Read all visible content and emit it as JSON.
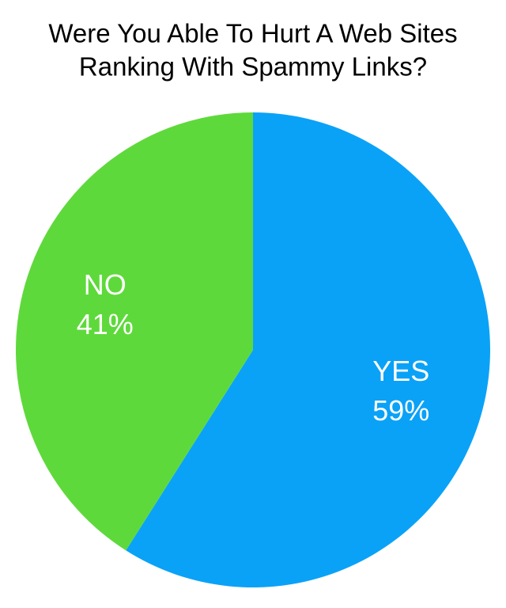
{
  "chart_data": {
    "type": "pie",
    "title": [
      "Were You Able To Hurt A Web Sites",
      "Ranking With Spammy Links?"
    ],
    "categories": [
      "YES",
      "NO"
    ],
    "values": [
      59,
      41
    ],
    "value_labels": [
      "59%",
      "41%"
    ],
    "colors": [
      "#0aa2f7",
      "#5ed93b"
    ]
  }
}
